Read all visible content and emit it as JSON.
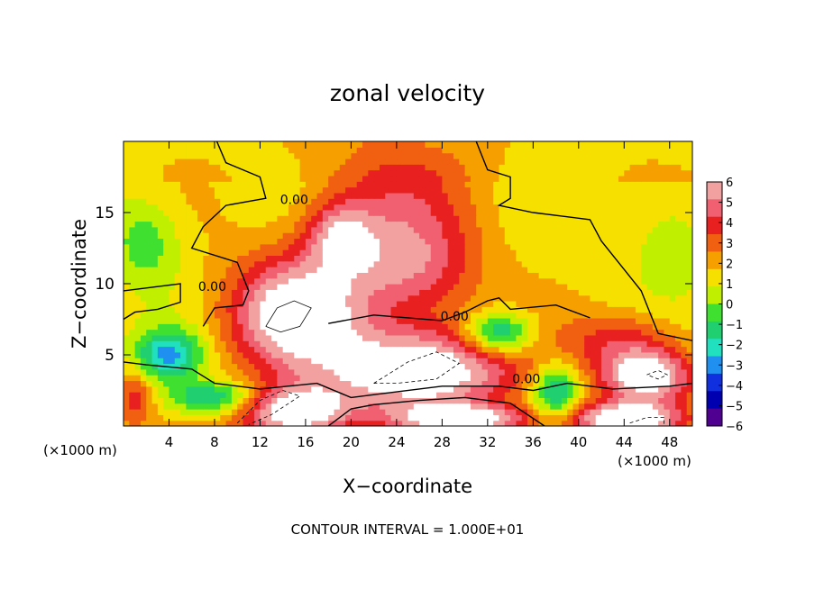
{
  "chart_data": {
    "type": "heatmap",
    "title": "zonal velocity",
    "xlabel": "X−coordinate",
    "ylabel": "Z−coordinate",
    "x_unit_left": "(×1000 m)",
    "x_unit_right": "(×1000 m)",
    "footer": "CONTOUR INTERVAL = 1.000E+01",
    "xlim": [
      0,
      50
    ],
    "ylim": [
      0,
      20
    ],
    "x_ticks": [
      4,
      8,
      12,
      16,
      20,
      24,
      28,
      32,
      36,
      40,
      44,
      48
    ],
    "y_ticks": [
      5,
      10,
      15
    ],
    "colorbar": {
      "ticks": [
        6,
        5,
        4,
        3,
        2,
        1,
        0,
        -1,
        -2,
        -3,
        -4,
        -5,
        -6
      ],
      "colors": [
        "#f2a0a0",
        "#f06070",
        "#e82020",
        "#f06010",
        "#f5a000",
        "#f5e000",
        "#c0f000",
        "#40e030",
        "#20d070",
        "#20e0c0",
        "#2090f0",
        "#1030e0",
        "#0000b0",
        "#500090"
      ]
    },
    "contour_labels": [
      {
        "text": "0.00",
        "x": 15,
        "y": 15.6
      },
      {
        "text": "0.00",
        "x": 7.8,
        "y": 9.5
      },
      {
        "text": "0.00",
        "x": 29.1,
        "y": 7.4
      },
      {
        "text": "0.00",
        "x": 35.4,
        "y": 3.0
      }
    ],
    "blobs": [
      {
        "x": 24,
        "y": 16,
        "rx": 7,
        "ry": 5,
        "v": 2.5
      },
      {
        "x": 25,
        "y": 11,
        "rx": 6,
        "ry": 3.5,
        "v": 3.8
      },
      {
        "x": 19,
        "y": 13.5,
        "rx": 3,
        "ry": 2.5,
        "v": 4
      },
      {
        "x": 15,
        "y": 8,
        "rx": 6,
        "ry": 4,
        "v": 6.5
      },
      {
        "x": 4,
        "y": 5,
        "rx": 3,
        "ry": 1.8,
        "v": -5
      },
      {
        "x": 26,
        "y": 4,
        "rx": 9,
        "ry": 3,
        "v": 7
      },
      {
        "x": 33,
        "y": 6.5,
        "rx": 3,
        "ry": 1.5,
        "v": -5.2
      },
      {
        "x": 15,
        "y": 1,
        "rx": 5,
        "ry": 1.8,
        "v": 7
      },
      {
        "x": 46,
        "y": 3.5,
        "rx": 4,
        "ry": 1.8,
        "v": 6.5
      },
      {
        "x": 44,
        "y": 0.5,
        "rx": 5,
        "ry": 1.2,
        "v": 7
      },
      {
        "x": 30,
        "y": 0.5,
        "rx": 6,
        "ry": 1,
        "v": 6
      },
      {
        "x": 8,
        "y": 2,
        "rx": 4,
        "ry": 1.2,
        "v": -4.5
      },
      {
        "x": 2,
        "y": 13,
        "rx": 3,
        "ry": 3,
        "v": -2.3
      },
      {
        "x": 48,
        "y": 13,
        "rx": 3,
        "ry": 3,
        "v": -1.5
      },
      {
        "x": 44,
        "y": 6,
        "rx": 5,
        "ry": 2,
        "v": 3
      },
      {
        "x": 38,
        "y": 2.5,
        "rx": 2,
        "ry": 2,
        "v": -4.5
      },
      {
        "x": 1,
        "y": 2,
        "rx": 1.5,
        "ry": 2,
        "v": 3
      }
    ],
    "contours_solid": [
      [
        [
          8.2,
          20
        ],
        [
          9,
          18.5
        ],
        [
          12,
          17.5
        ],
        [
          12.5,
          16
        ],
        [
          9,
          15.5
        ],
        [
          7,
          14
        ],
        [
          6,
          12.5
        ],
        [
          10,
          11.5
        ],
        [
          11,
          9.5
        ],
        [
          10.5,
          8.5
        ],
        [
          8,
          8.3
        ],
        [
          7,
          7
        ]
      ],
      [
        [
          31,
          20
        ],
        [
          32,
          18
        ],
        [
          34,
          17.5
        ],
        [
          34,
          16
        ],
        [
          33,
          15.5
        ],
        [
          36,
          15
        ],
        [
          41,
          14.5
        ],
        [
          42,
          13
        ],
        [
          44,
          11
        ],
        [
          45.5,
          9.5
        ],
        [
          46.5,
          7.5
        ],
        [
          47,
          6.5
        ],
        [
          50,
          6
        ]
      ],
      [
        [
          18,
          7.2
        ],
        [
          22,
          7.8
        ],
        [
          28,
          7.4
        ],
        [
          30,
          8
        ],
        [
          32,
          8.8
        ],
        [
          33,
          9
        ],
        [
          34,
          8.2
        ],
        [
          38,
          8.5
        ],
        [
          41,
          7.6
        ]
      ],
      [
        [
          0,
          9.5
        ],
        [
          5,
          10
        ],
        [
          5,
          8.7
        ],
        [
          3,
          8.2
        ],
        [
          1,
          8
        ],
        [
          0,
          7.5
        ]
      ],
      [
        [
          0,
          4.5
        ],
        [
          2,
          4.3
        ],
        [
          6,
          4
        ],
        [
          8,
          3
        ],
        [
          12,
          2.6
        ],
        [
          17,
          3
        ],
        [
          20,
          2
        ],
        [
          24,
          2.4
        ],
        [
          28,
          2.8
        ],
        [
          33,
          2.8
        ],
        [
          36,
          2.5
        ],
        [
          39,
          3
        ],
        [
          43,
          2.6
        ],
        [
          48,
          2.8
        ],
        [
          50,
          3
        ]
      ],
      [
        [
          18,
          0
        ],
        [
          20,
          1.2
        ],
        [
          22,
          1.5
        ],
        [
          26,
          1.8
        ],
        [
          30,
          2
        ],
        [
          34,
          1.6
        ],
        [
          37,
          0
        ]
      ]
    ],
    "contours_thin": [
      [
        [
          12.5,
          7
        ],
        [
          13.5,
          8.3
        ],
        [
          15,
          8.8
        ],
        [
          16.5,
          8.3
        ],
        [
          15.5,
          7
        ],
        [
          13.8,
          6.6
        ],
        [
          12.5,
          7
        ]
      ]
    ],
    "contours_dashed": [
      [
        [
          22,
          3
        ],
        [
          25,
          4.5
        ],
        [
          27.5,
          5.2
        ],
        [
          29.5,
          4.4
        ],
        [
          27.5,
          3.3
        ],
        [
          24,
          3
        ],
        [
          22,
          3
        ]
      ],
      [
        [
          10,
          0.2
        ],
        [
          12,
          1.8
        ],
        [
          14,
          2.5
        ],
        [
          15.5,
          2.1
        ],
        [
          13,
          0.8
        ],
        [
          11,
          0.1
        ]
      ],
      [
        [
          44.5,
          0.2
        ],
        [
          46,
          0.6
        ],
        [
          47.5,
          0.6
        ],
        [
          47.5,
          0.1
        ]
      ],
      [
        [
          46,
          3.6
        ],
        [
          47,
          3.9
        ],
        [
          47.8,
          3.6
        ],
        [
          47,
          3.3
        ],
        [
          46,
          3.6
        ]
      ]
    ]
  }
}
